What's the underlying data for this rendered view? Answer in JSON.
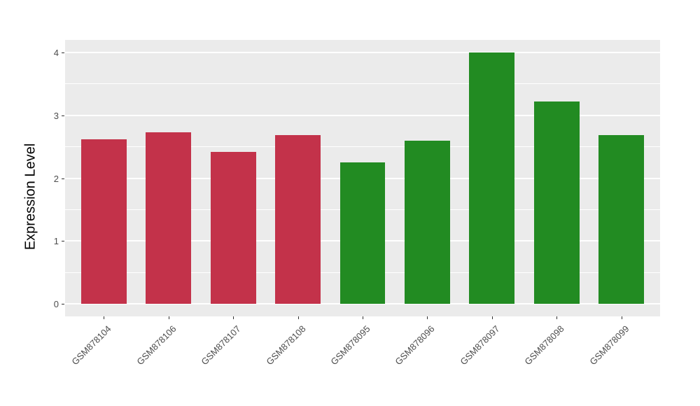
{
  "chart_data": {
    "type": "bar",
    "title": "",
    "xlabel": "",
    "ylabel": "Expression Level",
    "categories": [
      "GSM878104",
      "GSM878106",
      "GSM878107",
      "GSM878108",
      "GSM878095",
      "GSM878096",
      "GSM878097",
      "GSM878098",
      "GSM878099"
    ],
    "values": [
      2.62,
      2.73,
      2.42,
      2.68,
      2.25,
      2.6,
      4.0,
      3.22,
      2.68
    ],
    "bar_colors": [
      "#C3324A",
      "#C3324A",
      "#C3324A",
      "#C3324A",
      "#228B22",
      "#228B22",
      "#228B22",
      "#228B22",
      "#228B22"
    ],
    "group_colors": {
      "red_group": "#C3324A",
      "green_group": "#228B22"
    },
    "yticks": [
      0,
      1,
      2,
      3,
      4
    ],
    "minor_yticks": [
      0.5,
      1.5,
      2.5,
      3.5
    ],
    "ylim": [
      -0.2,
      4.2
    ],
    "bar_width_fraction": 0.7,
    "grid": "on",
    "legend": "none",
    "panel_bg": "#EBEBEB",
    "grid_color": "#FFFFFF",
    "tick_text_color": "#4D4D4D",
    "figure_bg": "#FFFFFF"
  }
}
